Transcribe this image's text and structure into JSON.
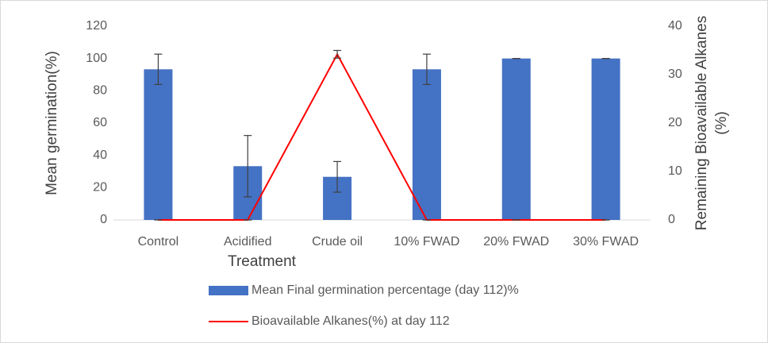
{
  "chart_data": {
    "type": "bar",
    "categories": [
      "Control",
      "Acidified",
      "Crude oil",
      "10% FWAD",
      "20% FWAD",
      "30% FWAD"
    ],
    "xlabel": "Treatment",
    "ylabel": "Mean germination(%)",
    "y2label": [
      "Remaining Bioavailable Alkanes",
      "(%)"
    ],
    "ylim": [
      0,
      120
    ],
    "yticks": [
      0,
      20,
      40,
      60,
      80,
      100,
      120
    ],
    "y2lim": [
      0,
      40
    ],
    "y2ticks": [
      0,
      10,
      20,
      30,
      40
    ],
    "grid": false,
    "legend": "bottom",
    "series": [
      {
        "name": "Mean Final germination percentage (day 112)%",
        "type": "bar",
        "color": "#4472c4",
        "values": [
          93.3,
          33.3,
          26.7,
          93.3,
          100,
          100
        ],
        "errors": [
          9.4,
          19,
          9.5,
          9.4,
          0,
          0
        ]
      },
      {
        "name": "Bioavailable Alkanes(%) at day 112",
        "type": "line",
        "axis": "y2",
        "color": "#ff0000",
        "values": [
          0,
          0,
          34.2,
          0,
          0,
          0
        ],
        "errors": [
          0,
          0,
          0.8,
          0,
          0,
          0
        ]
      }
    ]
  }
}
